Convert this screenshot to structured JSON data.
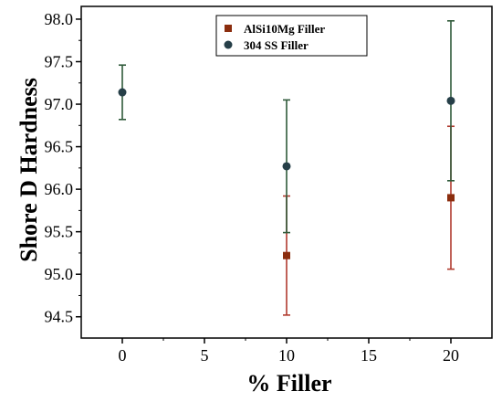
{
  "chart_data": {
    "type": "scatter",
    "xlabel": "% Filler",
    "ylabel": "Shore D Hardness",
    "xlim": [
      -2.5,
      22.5
    ],
    "ylim": [
      94.25,
      98.15
    ],
    "xticks": [
      0,
      5,
      10,
      15,
      20
    ],
    "yticks": [
      94.5,
      95.0,
      95.5,
      96.0,
      96.5,
      97.0,
      97.5,
      98.0
    ],
    "xtick_labels": [
      "0",
      "5",
      "10",
      "15",
      "20"
    ],
    "ytick_labels": [
      "94.5",
      "95.0",
      "95.5",
      "96.0",
      "96.5",
      "97.0",
      "97.5",
      "98.0"
    ],
    "grid": false,
    "legend": "top-center",
    "series": [
      {
        "name": "AlSi10Mg Filler",
        "marker": "square",
        "color": "#8b2d0e",
        "err_color": "#b03a2e",
        "x": [
          10,
          20
        ],
        "y": [
          95.22,
          95.9
        ],
        "err": [
          0.7,
          0.84
        ]
      },
      {
        "name": "304 SS Filler",
        "marker": "circle",
        "color": "#263f48",
        "err_color": "#2f5a3a",
        "x": [
          0,
          10,
          20
        ],
        "y": [
          97.14,
          96.27,
          97.04
        ],
        "err": [
          0.32,
          0.78,
          0.94
        ]
      }
    ]
  }
}
